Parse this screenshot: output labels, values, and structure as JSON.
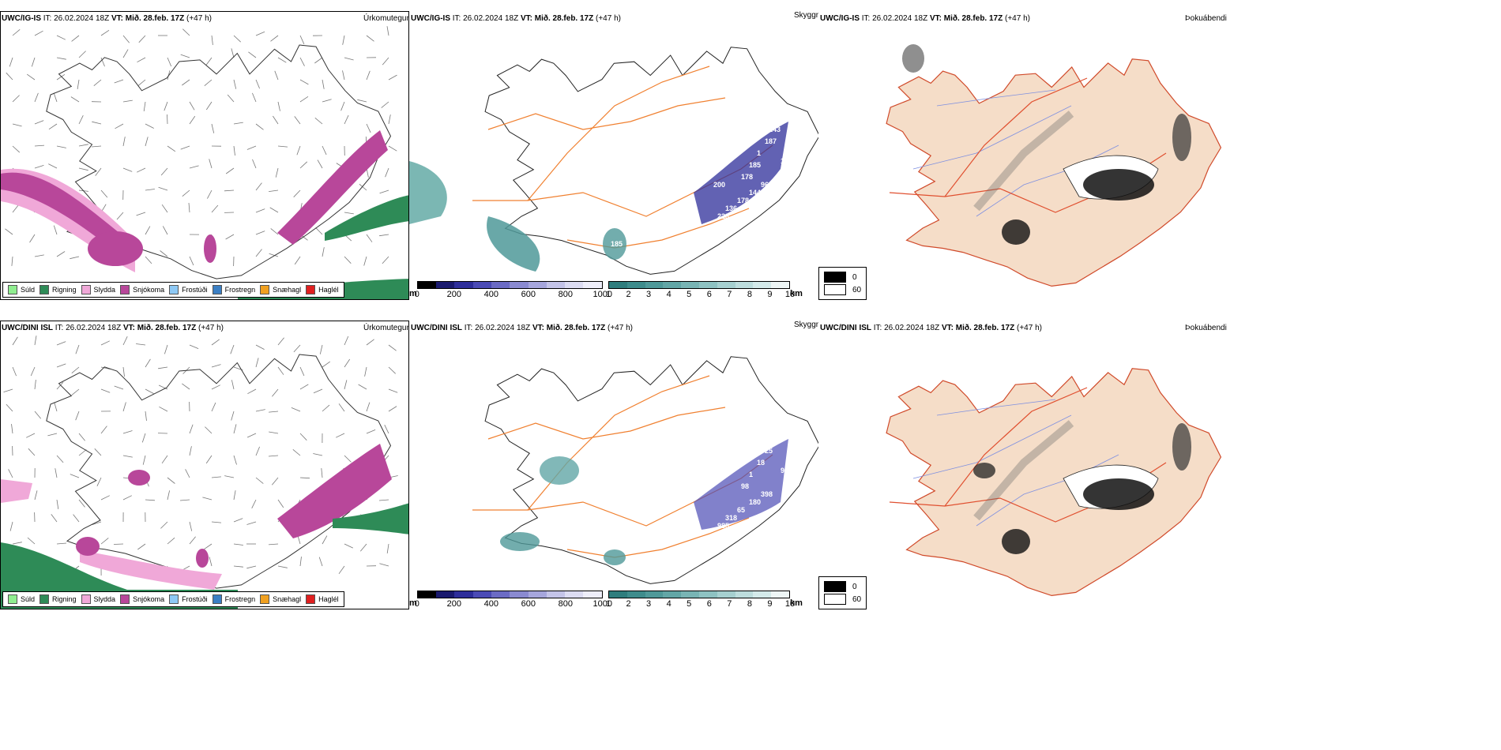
{
  "rows": [
    {
      "model": "UWC/IG-IS",
      "it_label": "IT:",
      "it": "26.02.2024 18Z",
      "vt_label": "VT:",
      "vt": "Mið. 28.feb. 17Z",
      "lead": "(+47 h)",
      "depth_labels": [
        "178",
        "185",
        "1",
        "187",
        "143",
        "162",
        "96",
        "144",
        "178",
        "136",
        "223",
        "18",
        "113",
        "200",
        "185",
        "190"
      ]
    },
    {
      "model": "UWC/DINI ISL",
      "it_label": "IT:",
      "it": "26.02.2024 18Z",
      "vt_label": "VT:",
      "vt": "Mið. 28.feb. 17Z",
      "lead": "(+47 h)",
      "depth_labels": [
        "98",
        "1",
        "18",
        "25",
        "294",
        "228",
        "398",
        "180",
        "65",
        "318",
        "985",
        "94",
        "210"
      ]
    }
  ],
  "fields": {
    "precip": "Úrkomutegund",
    "visibility": "Skyggni",
    "fog": "Þokuábendi"
  },
  "precip_legend": [
    {
      "label": "Súld",
      "color": "#90ee90"
    },
    {
      "label": "Rigning",
      "color": "#2e8b57"
    },
    {
      "label": "Slydda",
      "color": "#f0a8d8"
    },
    {
      "label": "Snjókoma",
      "color": "#b8479a"
    },
    {
      "label": "Frostúði",
      "color": "#8ec9f5"
    },
    {
      "label": "Frostregn",
      "color": "#3b7fc4"
    },
    {
      "label": "Snæhagl",
      "color": "#f0a020"
    },
    {
      "label": "Haglél",
      "color": "#e02020"
    }
  ],
  "colorbar_m": {
    "unit": "m",
    "ticks": [
      "0",
      "200",
      "400",
      "600",
      "800",
      "1000"
    ],
    "colors": [
      "#000000",
      "#1a1a6e",
      "#2e2e9a",
      "#4b4bb5",
      "#6b6bc4",
      "#8a8ad0",
      "#a6a6dc",
      "#c4c4e8",
      "#dcdcf2",
      "#eeeefa"
    ]
  },
  "colorbar_km": {
    "unit": "km",
    "ticks": [
      "1",
      "2",
      "3",
      "4",
      "5",
      "6",
      "7",
      "8",
      "9",
      "10"
    ],
    "colors": [
      "#2f7d7d",
      "#3e8c8c",
      "#4f9999",
      "#62a6a6",
      "#78b4b4",
      "#8ec2c2",
      "#a6d0d0",
      "#bddddd",
      "#d4eaea",
      "#eef6f6"
    ]
  },
  "fog_legend": [
    {
      "label": "0",
      "color": "#000000"
    },
    {
      "label": "60",
      "color": "#ffffff"
    }
  ]
}
